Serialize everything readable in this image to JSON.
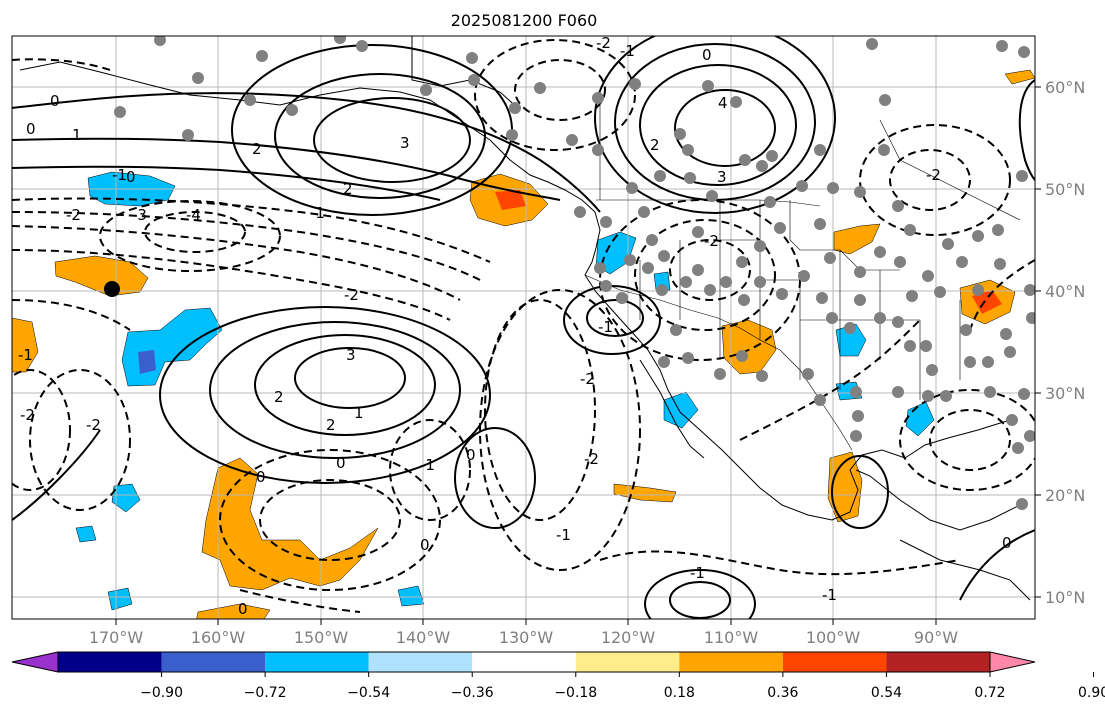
{
  "title": "2025081200 F060",
  "lon_labels": [
    "170°W",
    "160°W",
    "150°W",
    "140°W",
    "130°W",
    "120°W",
    "110°W",
    "100°W",
    "90°W"
  ],
  "lat_labels": [
    "60°N",
    "50°N",
    "40°N",
    "30°N",
    "20°N",
    "10°N"
  ],
  "colorbar": {
    "colors": [
      "#9932cc",
      "#00008b",
      "#3a5fcd",
      "#00bfff",
      "#b0e2ff",
      "#ffffff",
      "#ffec8b",
      "#ffa500",
      "#ff4500",
      "#b22222",
      "#ff88aa"
    ],
    "tick_labels": [
      "−0.90",
      "−0.72",
      "−0.54",
      "−0.36",
      "−0.18",
      "0.18",
      "0.36",
      "0.54",
      "0.72",
      "0.90"
    ]
  },
  "contour_labels": {
    "c1": "0",
    "c2": "0",
    "c3": "1",
    "c4": "2",
    "c5": "3",
    "c6": "2",
    "c7": "-1",
    "c8": "-2",
    "c9": "-3",
    "c10": "-4",
    "c11": "3",
    "c12": "-2",
    "c13": "2",
    "c14": "-1",
    "c15": "0",
    "c16": "-2",
    "c17": "0",
    "c18": "-2",
    "c19": "-1",
    "c20": "1",
    "c21": "2",
    "c22": "0",
    "c23": "-1",
    "c24": "-2",
    "c25": "-2",
    "c26": "0",
    "c27": "-1",
    "c28": "4",
    "c29": "3",
    "c30": "2",
    "c31": "-2",
    "c32": "-1",
    "c33": "-2",
    "c34": "0",
    "c35": "-2",
    "c36": "0",
    "c37": "-1",
    "c38": "0",
    "c39": "0",
    "c40": "-1",
    "c41": "-1"
  }
}
